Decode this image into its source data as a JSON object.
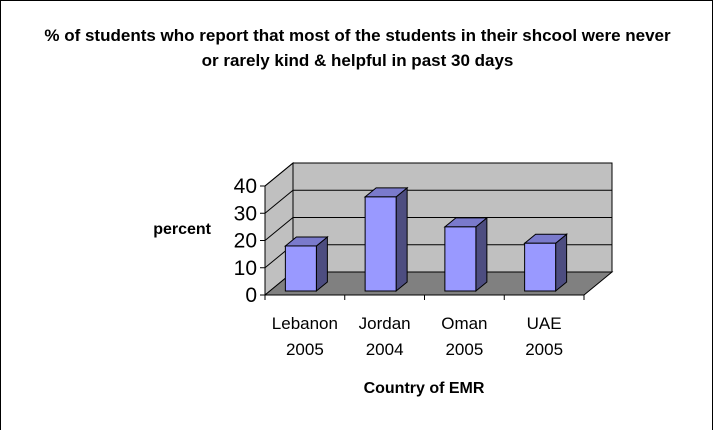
{
  "colors": {
    "back_wall": "#c0c0c0",
    "floor": "#808080",
    "bar_front": "#9999ff",
    "bar_side": "#4d4d80",
    "bar_top": "#7a7acc",
    "gridline": "#000000"
  },
  "chart_data": {
    "type": "bar",
    "style": "3d-column",
    "title": "% of students who report that most of the students in their shcool were never or rarely kind & helpful in past 30 days",
    "xlabel": "Country of EMR",
    "ylabel": "percent",
    "categories": [
      [
        "Lebanon",
        "2005"
      ],
      [
        "Jordan",
        "2004"
      ],
      [
        "Oman",
        "2005"
      ],
      [
        "UAE",
        "2005"
      ]
    ],
    "values": [
      18,
      36,
      25,
      19
    ],
    "ylim": [
      0,
      40
    ],
    "yticks": [
      0,
      10,
      20,
      30,
      40
    ],
    "grid": true,
    "legend": "none"
  }
}
